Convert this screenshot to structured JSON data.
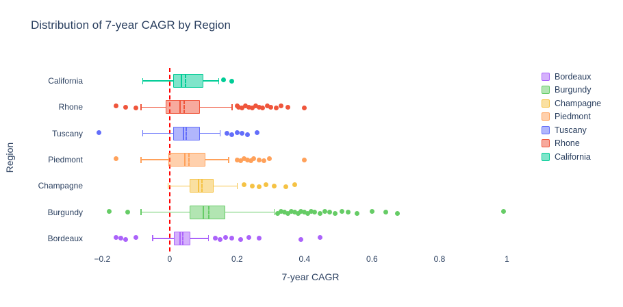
{
  "title": "Distribution of 7-year CAGR by Region",
  "zero_line": {
    "x": 0,
    "color": "#ff0000",
    "style": "dashed"
  },
  "chart_data": {
    "type": "box",
    "orientation": "horizontal",
    "title": "Distribution of 7-year CAGR by Region",
    "xlabel": "7-year CAGR",
    "ylabel": "Region",
    "xlim": [
      -0.225,
      1.06
    ],
    "grid": false,
    "legend_position": "right",
    "x_ticks": [
      {
        "label": "−0.2",
        "value": -0.2
      },
      {
        "label": "0",
        "value": 0
      },
      {
        "label": "0.2",
        "value": 0.2
      },
      {
        "label": "0.4",
        "value": 0.4
      },
      {
        "label": "0.6",
        "value": 0.6
      },
      {
        "label": "0.8",
        "value": 0.8
      },
      {
        "label": "1",
        "value": 1
      }
    ],
    "series": [
      {
        "name": "California",
        "color": "#00cc96",
        "whisker_low": -0.08,
        "q1": 0.01,
        "median": 0.035,
        "mean": 0.048,
        "q3": 0.1,
        "whisker_high": 0.145,
        "outliers": [
          0.16,
          0.185
        ]
      },
      {
        "name": "Rhone",
        "color": "#ef553b",
        "whisker_low": -0.085,
        "q1": -0.012,
        "median": 0.03,
        "mean": 0.042,
        "q3": 0.09,
        "whisker_high": 0.185,
        "outliers": [
          -0.16,
          -0.13,
          -0.1,
          0.2,
          0.205,
          0.215,
          0.225,
          0.235,
          0.245,
          0.255,
          0.265,
          0.275,
          0.29,
          0.3,
          0.315,
          0.33,
          0.35,
          0.4
        ]
      },
      {
        "name": "Tuscany",
        "color": "#636efa",
        "whisker_low": -0.08,
        "q1": 0.01,
        "median": 0.04,
        "mean": 0.05,
        "q3": 0.09,
        "whisker_high": 0.15,
        "outliers": [
          -0.21,
          0.17,
          0.185,
          0.2,
          0.215,
          0.23,
          0.26
        ]
      },
      {
        "name": "Piedmont",
        "color": "#ffa15a",
        "whisker_low": -0.085,
        "q1": -0.003,
        "median": 0.045,
        "mean": 0.057,
        "q3": 0.105,
        "whisker_high": 0.175,
        "outliers": [
          -0.16,
          0.2,
          0.21,
          0.22,
          0.23,
          0.24,
          0.25,
          0.265,
          0.28,
          0.295,
          0.4
        ]
      },
      {
        "name": "Champagne",
        "color": "#f5c244",
        "whisker_low": -0.005,
        "q1": 0.06,
        "median": 0.085,
        "mean": 0.096,
        "q3": 0.13,
        "whisker_high": 0.2,
        "outliers": [
          0.22,
          0.245,
          0.265,
          0.285,
          0.31,
          0.345,
          0.37
        ]
      },
      {
        "name": "Burgundy",
        "color": "#66cc66",
        "whisker_low": -0.085,
        "q1": 0.06,
        "median": 0.1,
        "mean": 0.117,
        "q3": 0.165,
        "whisker_high": 0.31,
        "outliers": [
          -0.18,
          -0.125,
          0.32,
          0.33,
          0.34,
          0.35,
          0.36,
          0.37,
          0.38,
          0.39,
          0.4,
          0.41,
          0.42,
          0.43,
          0.445,
          0.46,
          0.475,
          0.49,
          0.51,
          0.53,
          0.555,
          0.6,
          0.64,
          0.675,
          0.99
        ]
      },
      {
        "name": "Bordeaux",
        "color": "#ab63fa",
        "whisker_low": -0.05,
        "q1": 0.012,
        "median": 0.03,
        "mean": 0.039,
        "q3": 0.062,
        "whisker_high": 0.115,
        "outliers": [
          -0.16,
          -0.145,
          -0.13,
          -0.1,
          0.135,
          0.15,
          0.165,
          0.185,
          0.21,
          0.235,
          0.265,
          0.39,
          0.445
        ]
      }
    ]
  }
}
